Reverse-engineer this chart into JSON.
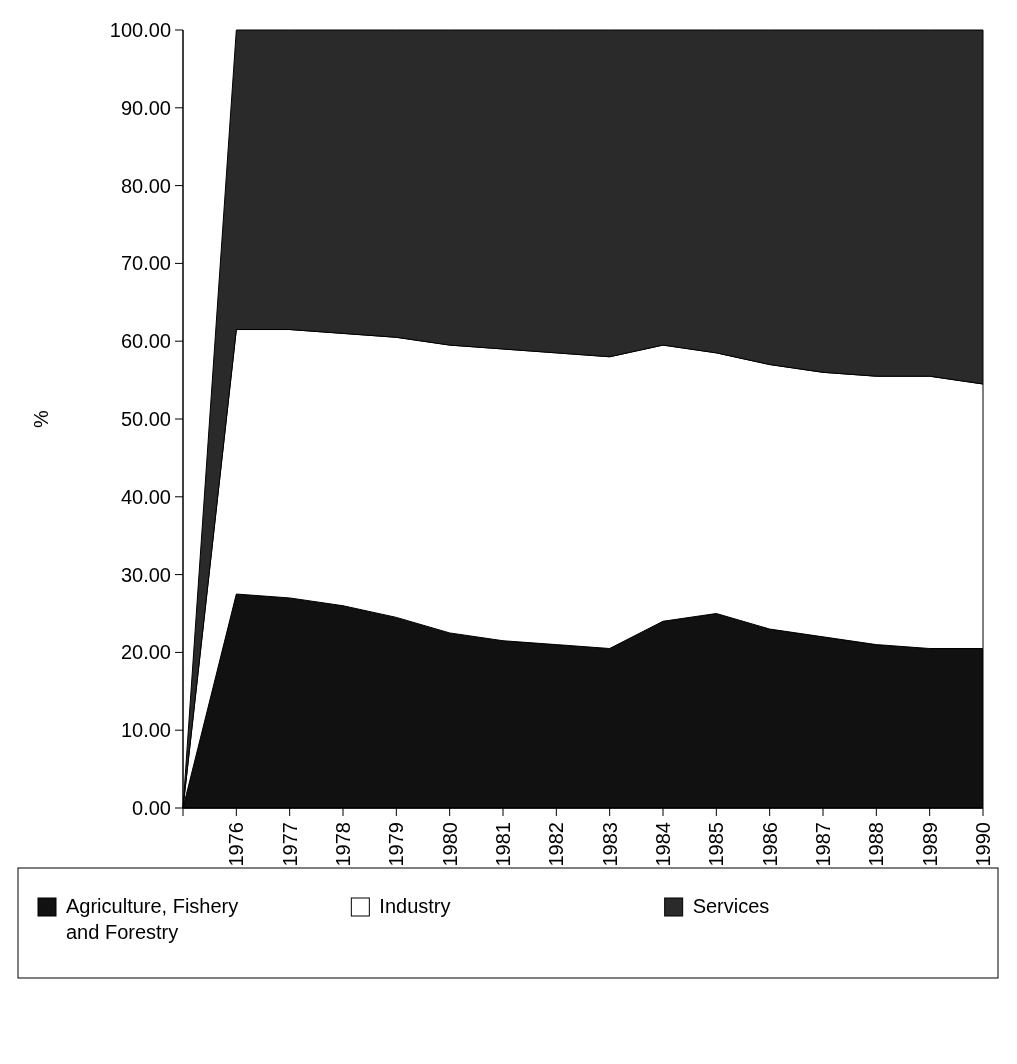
{
  "chart_data": {
    "type": "area",
    "stacked": true,
    "ylabel": "%",
    "categories": [
      null,
      "1976",
      "1977",
      "1978",
      "1979",
      "1980",
      "1981",
      "1982",
      "1983",
      "1984",
      "1985",
      "1986",
      "1987",
      "1988",
      "1989",
      "1990"
    ],
    "series": [
      {
        "name": "Agriculture, Fishery and Forestry",
        "color": "#111111",
        "values": [
          0,
          27.5,
          27,
          26,
          24.5,
          22.5,
          21.5,
          21,
          20.5,
          24,
          25,
          23,
          22,
          21,
          20.5,
          20.5
        ]
      },
      {
        "name": "Industry",
        "color": "#ffffff",
        "values": [
          0,
          34,
          34.5,
          35,
          36,
          37,
          37.5,
          37.5,
          37.5,
          35.5,
          33.5,
          34,
          34,
          34.5,
          35,
          34
        ]
      },
      {
        "name": "Services",
        "color": "#2a2a2a",
        "values": [
          0,
          38.5,
          38.5,
          39,
          39.5,
          40.5,
          41,
          41.5,
          42,
          40.5,
          41.5,
          43,
          44,
          44.5,
          44.5,
          45.5
        ]
      }
    ],
    "ylim": [
      0,
      100
    ],
    "yticks": [
      {
        "value": 0,
        "label": "0.00"
      },
      {
        "value": 10,
        "label": "10.00"
      },
      {
        "value": 20,
        "label": "20.00"
      },
      {
        "value": 30,
        "label": "30.00"
      },
      {
        "value": 40,
        "label": "40.00"
      },
      {
        "value": 50,
        "label": "50.00"
      },
      {
        "value": 60,
        "label": "60.00"
      },
      {
        "value": 70,
        "label": "70.00"
      },
      {
        "value": 80,
        "label": "80.00"
      },
      {
        "value": 90,
        "label": "90.00"
      },
      {
        "value": 100,
        "label": "100.00"
      }
    ],
    "legend": "bottom",
    "grid": false
  }
}
